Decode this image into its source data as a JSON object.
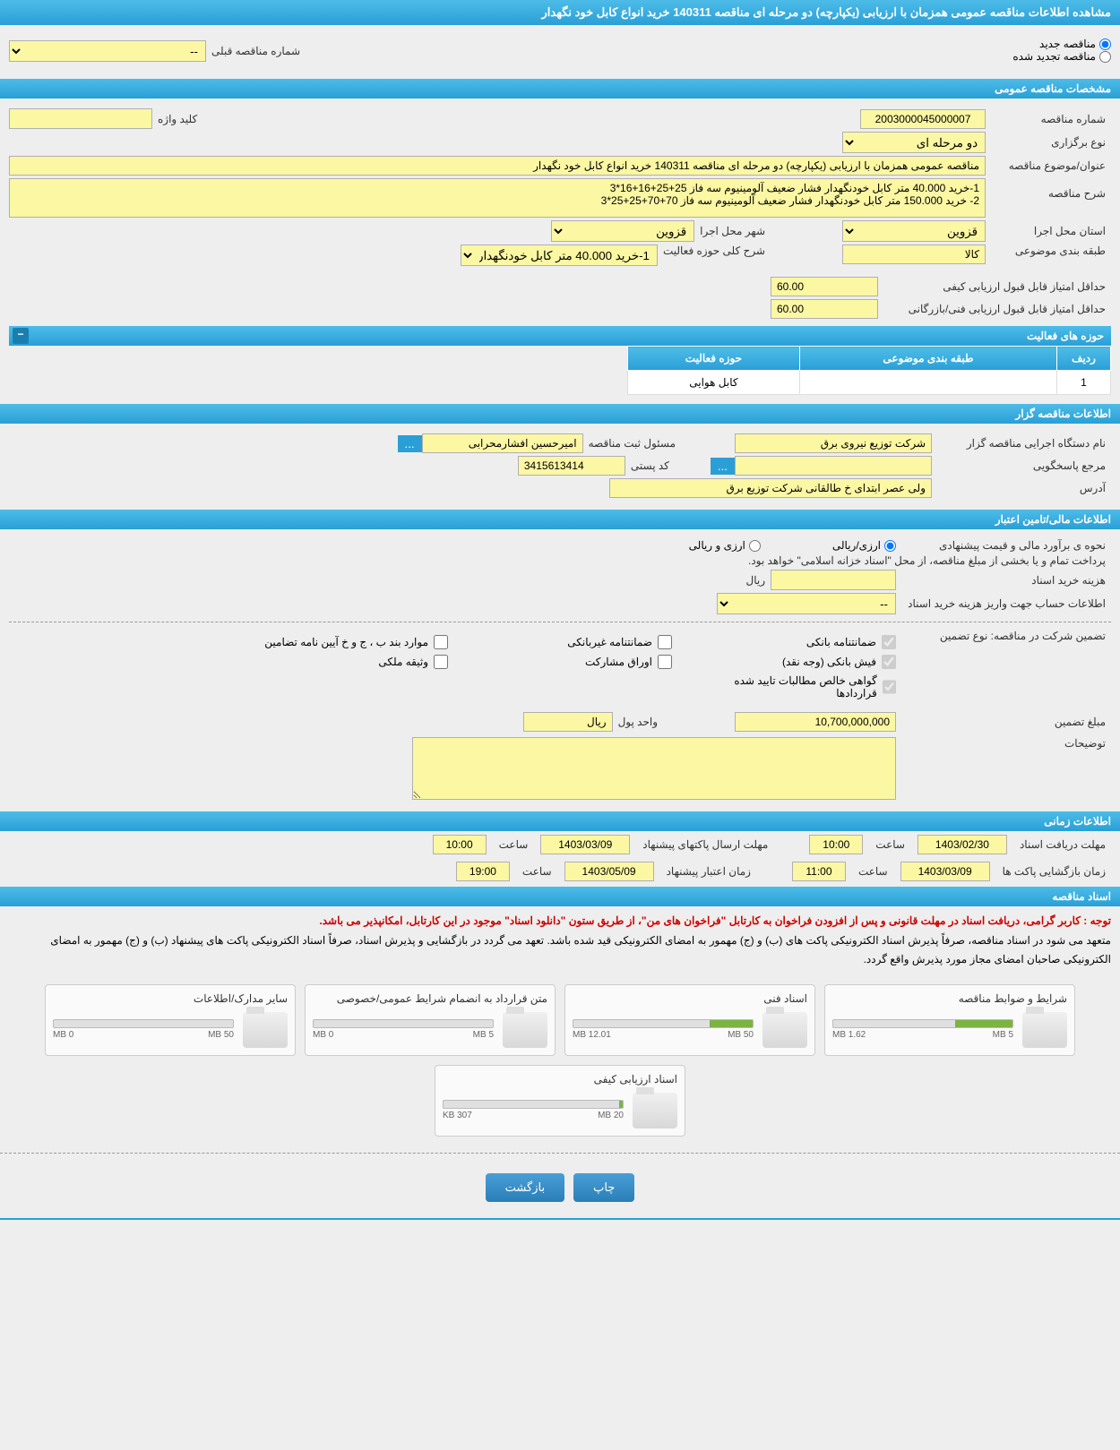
{
  "header": {
    "title": "مشاهده اطلاعات مناقصه عمومی همزمان با ارزیابی (یکپارچه) دو مرحله ای مناقصه 140311 خرید انواع کابل خود نگهدار"
  },
  "top_radios": {
    "new_tender": "مناقصه جدید",
    "renewed_tender": "مناقصه تجدید شده",
    "prev_number_label": "شماره مناقصه قبلی",
    "prev_number_value": "--"
  },
  "sections": {
    "general": "مشخصات مناقصه عمومی",
    "organizer": "اطلاعات مناقصه گزار",
    "financial": "اطلاعات مالی/تامین اعتبار",
    "timing": "اطلاعات زمانی",
    "documents": "اسناد مناقصه"
  },
  "general": {
    "tender_no_label": "شماره مناقصه",
    "tender_no": "2003000045000007",
    "keyword_label": "کلید واژه",
    "keyword": "",
    "type_label": "نوع برگزاری",
    "type": "دو مرحله ای",
    "subject_label": "عنوان/موضوع مناقصه",
    "subject": "مناقصه عمومی همزمان با ارزیابی (یکپارچه) دو مرحله ای مناقصه 140311 خرید انواع کابل خود نگهدار",
    "desc_label": "شرح مناقصه",
    "desc": "1-خرید 40.000 متر کابل خودنگهدار فشار ضعیف آلومینیوم سه فاز 25+25+16+16*3\n2- خرید 150.000 متر  کابل خودنگهدار فشار ضعیف آلومینیوم سه فاز 70+70+25+25*3",
    "province_label": "استان محل اجرا",
    "province": "قزوین",
    "city_label": "شهر محل اجرا",
    "city": "قزوین",
    "category_label": "طبقه بندی موضوعی",
    "category": "کالا",
    "scope_label": "شرح کلی حوزه فعالیت",
    "scope": "1-خرید 40.000 متر کابل خودنگهدار فشار ضعیف",
    "min_quality_label": "حداقل امتیاز قابل قبول ارزیابی کیفی",
    "min_quality": "60.00",
    "min_tech_label": "حداقل امتیاز قابل قبول ارزیابی فنی/بازرگانی",
    "min_tech": "60.00",
    "activity_areas_title": "حوزه های فعالیت",
    "table_headers": {
      "row": "ردیف",
      "category": "طبقه بندی موضوعی",
      "area": "حوزه فعالیت"
    },
    "table_rows": [
      {
        "row": "1",
        "category": "",
        "area": "کابل هوایی"
      }
    ]
  },
  "organizer": {
    "org_label": "نام دستگاه اجرایی مناقصه گزار",
    "org": "شرکت توزیع نیروی برق",
    "manager_label": "مسئول ثبت مناقصه",
    "manager": "امیرحسین افشارمحرابی",
    "resp_label": "مرجع پاسخگویی",
    "resp": "",
    "postal_label": "کد پستی",
    "postal": "3415613414",
    "address_label": "آدرس",
    "address": "ولی عصر ابتدای خ طالقانی شرکت توزیع برق"
  },
  "financial": {
    "price_type_label": "نحوه ی برآورد مالی و قیمت پیشنهادی",
    "rial": "ارزی/ریالی",
    "currency": "ارزی و ریالی",
    "payment_note": "پرداخت تمام و یا بخشی از مبلغ مناقصه، از محل \"اسناد خزانه اسلامی\" خواهد بود.",
    "doc_cost_label": "هزینه خرید اسناد",
    "doc_cost": "",
    "doc_cost_unit": "ریال",
    "account_label": "اطلاعات حساب جهت واریز هزینه خرید اسناد",
    "account": "--",
    "guarantee_label": "تضمین شرکت در مناقصه:   نوع تضمین",
    "guarantees": {
      "bank": "ضمانتنامه بانکی",
      "nonbank": "ضمانتنامه غیربانکی",
      "bylaw": "موارد بند ب ، ج و خ آیین نامه تضامین",
      "cash": "فیش بانکی (وجه نقد)",
      "bonds": "اوراق مشارکت",
      "property": "وثیقه ملکی",
      "contracts": "گواهی خالص مطالبات تایید شده قراردادها"
    },
    "guarantee_amount_label": "مبلغ تضمین",
    "guarantee_amount": "10,700,000,000",
    "unit_label": "واحد پول",
    "unit": "ریال",
    "notes_label": "توضیحات"
  },
  "timing": {
    "receive_deadline_label": "مهلت دریافت اسناد",
    "receive_deadline": "1403/02/30",
    "receive_time_label": "ساعت",
    "receive_time": "10:00",
    "send_deadline_label": "مهلت ارسال پاکتهای پیشنهاد",
    "send_deadline": "1403/03/09",
    "send_time_label": "ساعت",
    "send_time": "10:00",
    "open_label": "زمان بازگشایی پاکت ها",
    "open_date": "1403/03/09",
    "open_time_label": "ساعت",
    "open_time": "11:00",
    "validity_label": "زمان اعتبار پیشنهاد",
    "validity_date": "1403/05/09",
    "validity_time_label": "ساعت",
    "validity_time": "19:00"
  },
  "documents": {
    "notice1": "توجه : کاربر گرامی، دریافت اسناد در مهلت قانونی و پس از افزودن فراخوان به کارتابل \"فراخوان های من\"، از طریق ستون \"دانلود اسناد\" موجود در این کارتابل، امکانپذیر می باشد.",
    "notice2": "متعهد می شود در اسناد مناقصه، صرفاً پذیرش اسناد الکترونیکی پاکت های (ب) و (ج) مهمور به امضای الکترونیکی قید شده باشد. تعهد می گردد در بازگشایی و پذیرش اسناد، صرفاً اسناد الکترونیکی پاکت های پیشنهاد (ب) و (ج) مهمور به امضای الکترونیکی صاحبان امضای مجاز مورد پذیرش واقع گردد.",
    "cards": [
      {
        "title": "شرایط و ضوابط مناقصه",
        "used": "1.62 MB",
        "total": "5 MB",
        "pct": 32
      },
      {
        "title": "اسناد فنی",
        "used": "12.01 MB",
        "total": "50 MB",
        "pct": 24
      },
      {
        "title": "متن قرارداد به انضمام شرایط عمومی/خصوصی",
        "used": "0 MB",
        "total": "5 MB",
        "pct": 0
      },
      {
        "title": "سایر مدارک/اطلاعات",
        "used": "0 MB",
        "total": "50 MB",
        "pct": 0
      },
      {
        "title": "اسناد ارزیابی کیفی",
        "used": "307 KB",
        "total": "20 MB",
        "pct": 2
      }
    ]
  },
  "buttons": {
    "print": "چاپ",
    "back": "بازگشت"
  },
  "colors": {
    "header_bg": "#2a9fd6",
    "field_bg": "#fbf7a3",
    "page_bg": "#eeeeee",
    "red": "#cc0000",
    "progress": "#7cb342"
  }
}
